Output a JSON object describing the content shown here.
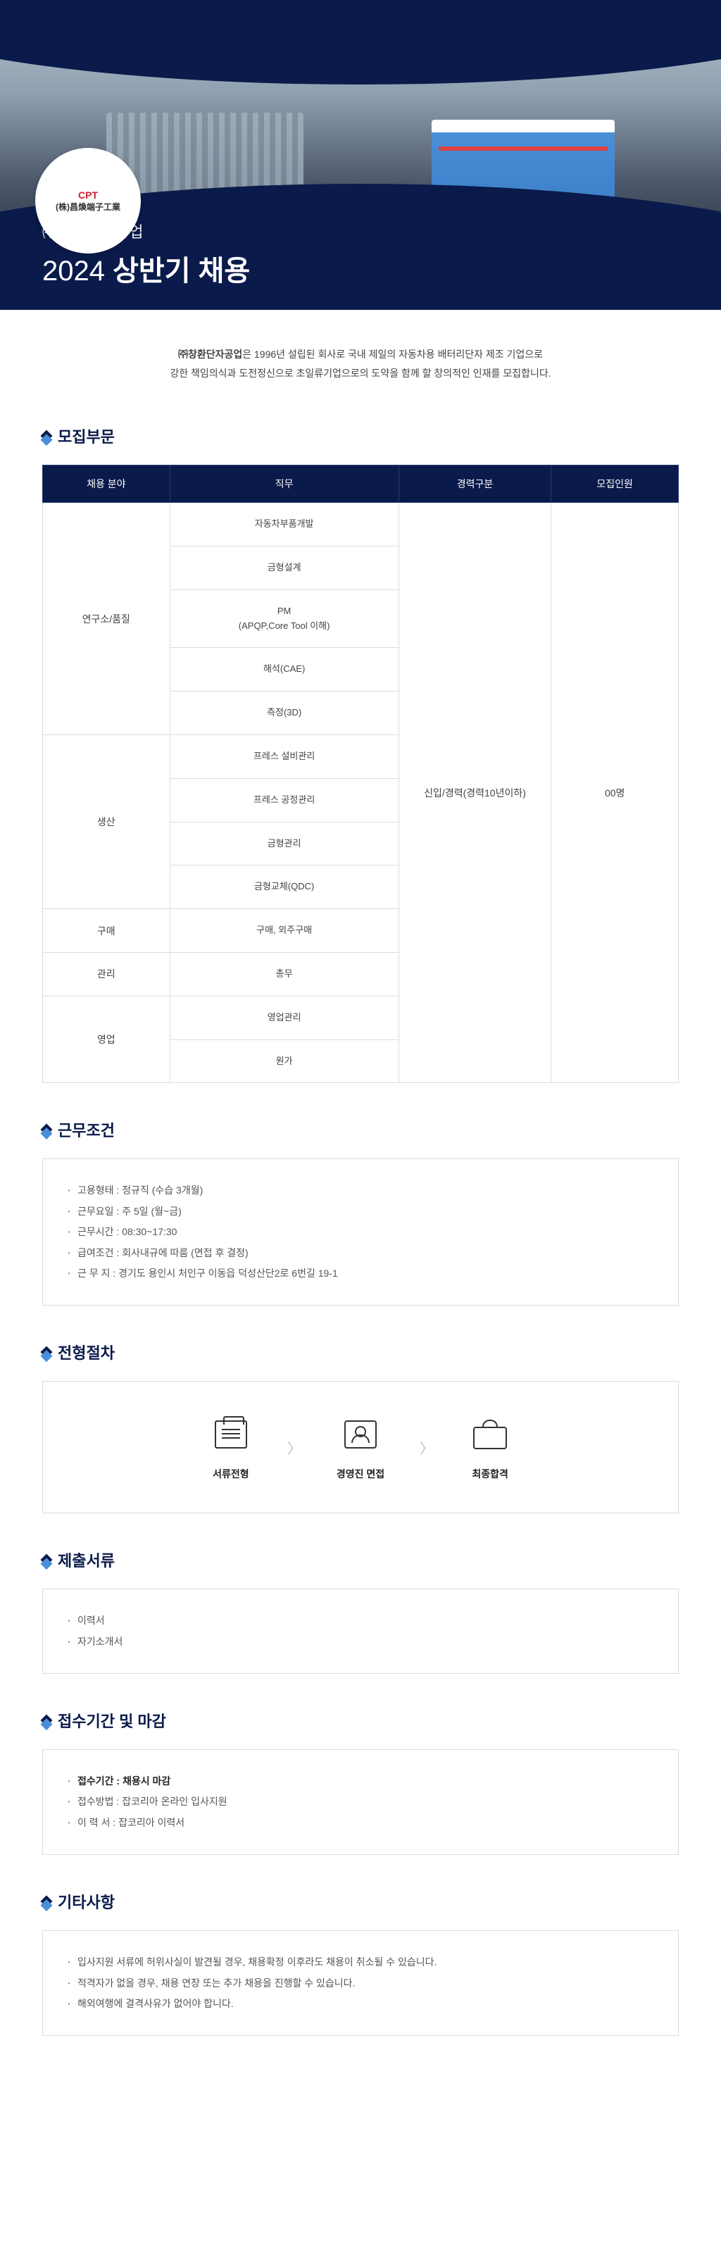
{
  "hero": {
    "logo_main": "CPT",
    "logo_sub": "(株)昌煥端子工業",
    "subtitle": "㈜창환단자공업",
    "title_year": "2024",
    "title_bold": "상반기 채용"
  },
  "intro": {
    "strong": "㈜창환단자공업",
    "line1_rest": "은 1996년 설립된 회사로 국내 제일의 자동차용 배터리단자 제조 기업으로",
    "line2": "강한 책임의식과 도전정신으로 초일류기업으로의 도약을 함께 할 창의적인 인재를 모집합니다."
  },
  "sections": {
    "recruit": "모집부문",
    "conditions": "근무조건",
    "process": "전형절차",
    "documents": "제출서류",
    "period": "접수기간 및 마감",
    "etc": "기타사항"
  },
  "table": {
    "headers": [
      "채용 분야",
      "직무",
      "경력구분",
      "모집인원"
    ],
    "experience": "신입/경력(경력10년이하)",
    "headcount": "00명",
    "groups": [
      {
        "field": "연구소/품질",
        "jobs": [
          "자동차부품개발",
          "금형설계",
          "PM\n(APQP,Core Tool 이해)",
          "해석(CAE)",
          "측정(3D)"
        ]
      },
      {
        "field": "생산",
        "jobs": [
          "프레스 설비관리",
          "프레스 공정관리",
          "금형관리",
          "금형교체(QDC)"
        ]
      },
      {
        "field": "구매",
        "jobs": [
          "구매, 외주구매"
        ]
      },
      {
        "field": "관리",
        "jobs": [
          "총무"
        ]
      },
      {
        "field": "영업",
        "jobs": [
          "영업관리",
          "원가"
        ]
      }
    ]
  },
  "conditions": [
    "고용형태 : 정규직 (수습 3개월)",
    "근무요일 : 주 5일 (월~금)",
    "근무시간 : 08:30~17:30",
    "급여조건 : 회사내규에 따름 (면접 후 결정)",
    "근 무 지 : 경기도 용인시 처인구 이동읍 덕성산단2로 6번길 19-1"
  ],
  "process": {
    "steps": [
      "서류전형",
      "경영진 면접",
      "최종합격"
    ]
  },
  "documents": [
    "이력서",
    "자기소개서"
  ],
  "period": [
    {
      "text": "접수기간 : 채용시 마감",
      "strong": true
    },
    {
      "text": "접수방법 : 잡코리아 온라인 입사지원",
      "strong": false
    },
    {
      "text": "이 력 서 : 잡코리아 이력서",
      "strong": false
    }
  ],
  "etc": [
    "입사지원 서류에 허위사실이 발견될 경우, 채용확정 이후라도 채용이 취소될 수 있습니다.",
    "적격자가 없을 경우, 채용 연장 또는 추가 채용을 진행할 수 있습니다.",
    "해외여행에 결격사유가 없어야 합니다."
  ],
  "colors": {
    "navy": "#0a1a4a",
    "accent_blue": "#4a8fd8",
    "border": "#d8dce4",
    "text": "#444444",
    "red": "#d02030"
  }
}
